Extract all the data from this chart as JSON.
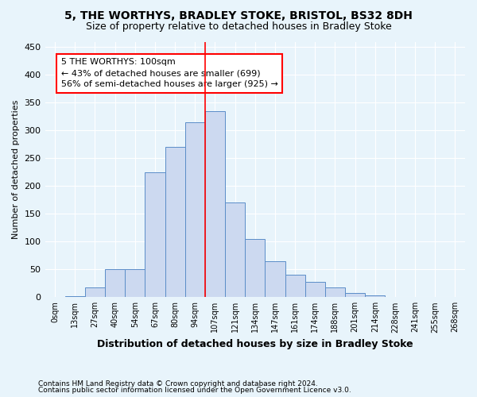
{
  "title": "5, THE WORTHYS, BRADLEY STOKE, BRISTOL, BS32 8DH",
  "subtitle": "Size of property relative to detached houses in Bradley Stoke",
  "xlabel": "Distribution of detached houses by size in Bradley Stoke",
  "ylabel": "Number of detached properties",
  "footnote1": "Contains HM Land Registry data © Crown copyright and database right 2024.",
  "footnote2": "Contains public sector information licensed under the Open Government Licence v3.0.",
  "bar_labels": [
    "0sqm",
    "13sqm",
    "27sqm",
    "40sqm",
    "54sqm",
    "67sqm",
    "80sqm",
    "94sqm",
    "107sqm",
    "121sqm",
    "134sqm",
    "147sqm",
    "161sqm",
    "174sqm",
    "188sqm",
    "201sqm",
    "214sqm",
    "228sqm",
    "241sqm",
    "255sqm",
    "268sqm"
  ],
  "bar_values": [
    0,
    2,
    18,
    50,
    50,
    225,
    270,
    315,
    335,
    170,
    105,
    65,
    40,
    28,
    18,
    8,
    3,
    1,
    0,
    0,
    0
  ],
  "bar_color": "#ccd9f0",
  "bar_edge_color": "#5b8dc8",
  "vline_x": 7.5,
  "vline_color": "red",
  "annotation_text": "5 THE WORTHYS: 100sqm\n← 43% of detached houses are smaller (699)\n56% of semi-detached houses are larger (925) →",
  "annotation_box_color": "white",
  "annotation_box_edge": "red",
  "ylim": [
    0,
    460
  ],
  "yticks": [
    0,
    50,
    100,
    150,
    200,
    250,
    300,
    350,
    400,
    450
  ],
  "bg_color": "#e8f4fb",
  "plot_bg_color": "#e8f4fb",
  "grid_color": "white",
  "title_fontsize": 10,
  "subtitle_fontsize": 9,
  "annotation_fontsize": 8,
  "ylabel_fontsize": 8,
  "xlabel_fontsize": 9,
  "footnote_fontsize": 6.5,
  "xtick_fontsize": 7,
  "ytick_fontsize": 8
}
